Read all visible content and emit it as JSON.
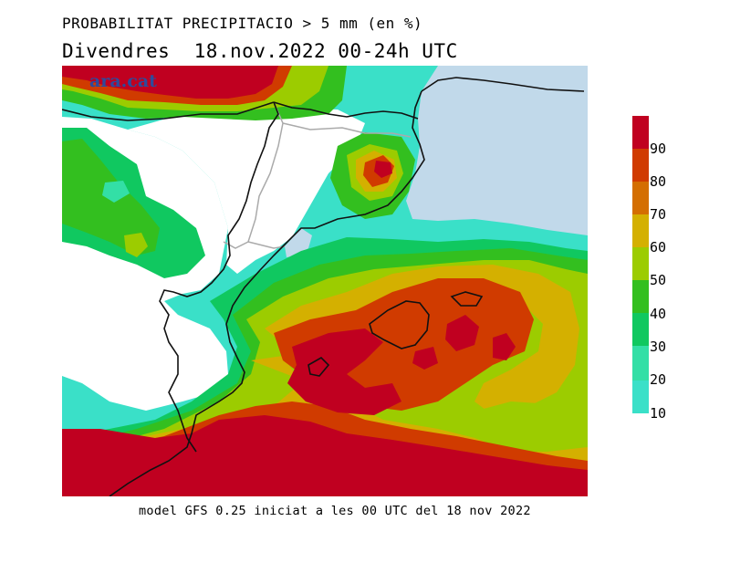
{
  "header": {
    "title": "PROBABILITAT PRECIPITACIO > 5 mm (en %)",
    "subtitle": "Divendres  18.nov.2022 00-24h UTC"
  },
  "watermark": "ara.cat",
  "footer": "model GFS 0.25 iniciat a les 00 UTC del 18 nov 2022",
  "legend": {
    "labels": [
      "90",
      "80",
      "70",
      "60",
      "50",
      "40",
      "30",
      "20",
      "10"
    ],
    "colors": [
      "#c00020",
      "#d03b00",
      "#d46e00",
      "#d4b000",
      "#9ccc00",
      "#33bf1f",
      "#10c860",
      "#33dfa6",
      "#3ae0c8"
    ]
  },
  "colors": {
    "sea_no_data": "#c1d9ea",
    "land_no_data": "#ffffff",
    "borders": "#111111",
    "region_borders": "#aaaaaa"
  }
}
